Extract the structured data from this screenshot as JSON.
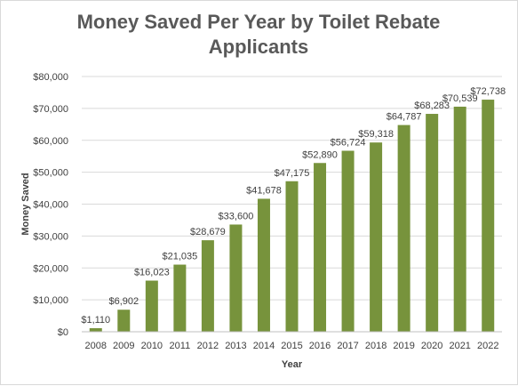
{
  "chart_data": {
    "type": "bar",
    "title": "Money Saved Per Year by Toilet Rebate Applicants",
    "xlabel": "Year",
    "ylabel": "Money Saved",
    "categories": [
      "2008",
      "2009",
      "2010",
      "2011",
      "2012",
      "2013",
      "2014",
      "2015",
      "2016",
      "2017",
      "2018",
      "2019",
      "2020",
      "2021",
      "2022"
    ],
    "values": [
      1110,
      6902,
      16023,
      21035,
      28679,
      33600,
      41678,
      47175,
      52890,
      56724,
      59318,
      64787,
      68283,
      70539,
      72738
    ],
    "data_labels": [
      "$1,110",
      "$6,902",
      "$16,023",
      "$21,035",
      "$28,679",
      "$33,600",
      "$41,678",
      "$47,175",
      "$52,890",
      "$56,724",
      "$59,318",
      "$64,787",
      "$68,283",
      "$70,539",
      "$72,738"
    ],
    "ylim": [
      0,
      80000
    ],
    "y_ticks": [
      0,
      10000,
      20000,
      30000,
      40000,
      50000,
      60000,
      70000,
      80000
    ],
    "y_tick_labels": [
      "$0",
      "$10,000",
      "$20,000",
      "$30,000",
      "$40,000",
      "$50,000",
      "$60,000",
      "$70,000",
      "$80,000"
    ],
    "grid": true,
    "legend": "none",
    "bar_color": "#77933c",
    "grid_color": "#d9d9d9"
  }
}
